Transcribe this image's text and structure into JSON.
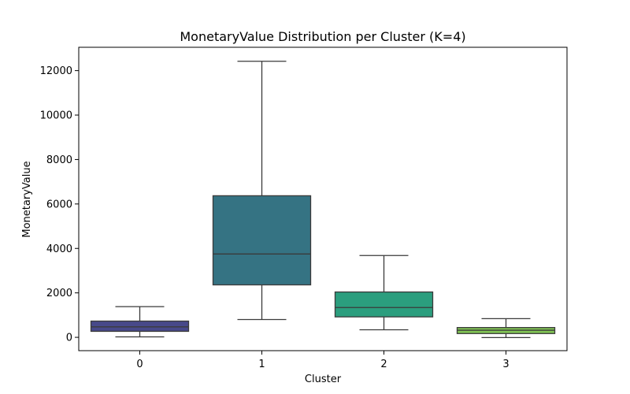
{
  "chart_data": {
    "type": "box",
    "title": "MonetaryValue Distribution per Cluster (K=4)",
    "xlabel": "Cluster",
    "ylabel": "MonetaryValue",
    "ylim": [
      -600,
      13050
    ],
    "yticks": [
      0,
      2000,
      4000,
      6000,
      8000,
      10000,
      12000
    ],
    "yticks_labels": [
      "0",
      "2000",
      "4000",
      "6000",
      "8000",
      "10000",
      "12000"
    ],
    "grid": false,
    "legend": "none",
    "categories": [
      "0",
      "1",
      "2",
      "3"
    ],
    "boxes": [
      {
        "category": "0",
        "whisker_low": 20,
        "q1": 270,
        "median": 470,
        "q3": 730,
        "whisker_high": 1380,
        "color": "#48498a"
      },
      {
        "category": "1",
        "whisker_low": 800,
        "q1": 2360,
        "median": 3750,
        "q3": 6370,
        "whisker_high": 12420,
        "color": "#357383"
      },
      {
        "category": "2",
        "whisker_low": 340,
        "q1": 920,
        "median": 1340,
        "q3": 2040,
        "whisker_high": 3680,
        "color": "#2b9e7e"
      },
      {
        "category": "3",
        "whisker_low": -10,
        "q1": 170,
        "median": 320,
        "q3": 440,
        "whisker_high": 840,
        "color": "#80c454"
      }
    ]
  }
}
